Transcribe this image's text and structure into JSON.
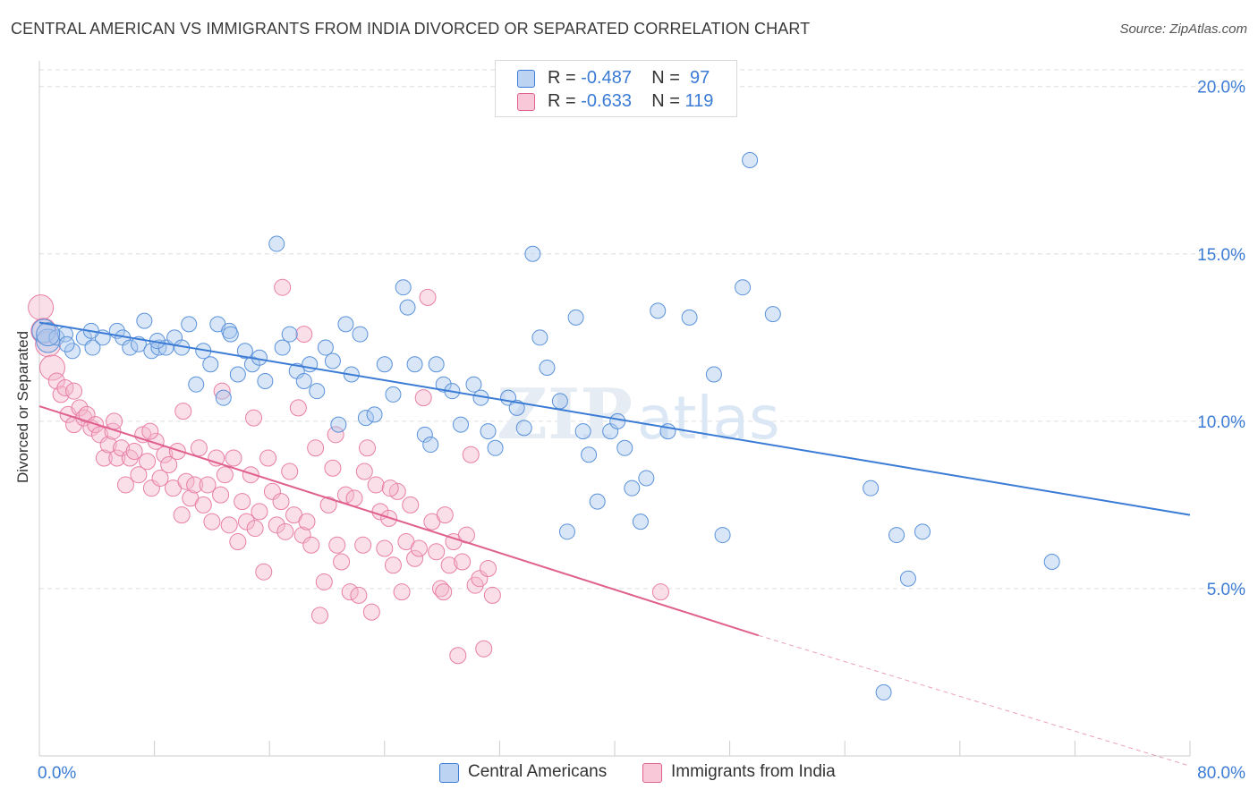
{
  "title": "CENTRAL AMERICAN VS IMMIGRANTS FROM INDIA DIVORCED OR SEPARATED CORRELATION CHART",
  "source": "Source: ZipAtlas.com",
  "watermark": {
    "zip": "ZIP",
    "atlas": "atlas"
  },
  "legend": {
    "rows": [
      {
        "r_label": "R = ",
        "r_value": "-0.487",
        "n_label": "N = ",
        "n_value": "97"
      },
      {
        "r_label": "R = ",
        "r_value": "-0.633",
        "n_label": "N = ",
        "n_value": "119"
      }
    ]
  },
  "colors": {
    "blue": "#3a7bd5",
    "blue_fill": "#a9c8ee",
    "pink": "#e0608e",
    "pink_fill": "#f5b8cc",
    "tick_text": "#3a7bd5",
    "grid": "#dddddd"
  },
  "chart_data": {
    "type": "scatter",
    "title": "CENTRAL AMERICAN VS IMMIGRANTS FROM INDIA DIVORCED OR SEPARATED CORRELATION CHART",
    "xlabel": "",
    "ylabel": "Divorced or Separated",
    "xlim": [
      0,
      80
    ],
    "ylim": [
      0,
      20.5
    ],
    "x_tick_labels": [
      "0.0%",
      "80.0%"
    ],
    "y_ticks": [
      5,
      10,
      15,
      20
    ],
    "y_tick_labels": [
      "5.0%",
      "10.0%",
      "15.0%",
      "20.0%"
    ],
    "grid": true,
    "series": [
      {
        "name": "Central Americans",
        "color": "#3a7bd5",
        "trend": {
          "x0": 0,
          "y0": 12.95,
          "x1": 80,
          "y1": 7.2
        },
        "points": [
          [
            0.3,
            12.7
          ],
          [
            0.6,
            12.4
          ],
          [
            1.2,
            12.5
          ],
          [
            1.8,
            12.6
          ],
          [
            2.3,
            12.1
          ],
          [
            3.1,
            12.5
          ],
          [
            3.7,
            12.2
          ],
          [
            4.4,
            12.5
          ],
          [
            5.4,
            12.7
          ],
          [
            5.8,
            12.5
          ],
          [
            6.3,
            12.2
          ],
          [
            6.9,
            12.3
          ],
          [
            7.3,
            13.0
          ],
          [
            7.8,
            12.1
          ],
          [
            8.3,
            12.2
          ],
          [
            8.8,
            12.2
          ],
          [
            9.4,
            12.5
          ],
          [
            9.9,
            12.2
          ],
          [
            10.4,
            12.9
          ],
          [
            10.9,
            11.1
          ],
          [
            11.4,
            12.1
          ],
          [
            11.9,
            11.7
          ],
          [
            12.4,
            12.9
          ],
          [
            12.8,
            10.7
          ],
          [
            13.2,
            12.7
          ],
          [
            13.8,
            11.4
          ],
          [
            14.3,
            12.1
          ],
          [
            14.8,
            11.7
          ],
          [
            15.3,
            11.9
          ],
          [
            15.7,
            11.2
          ],
          [
            16.5,
            15.3
          ],
          [
            16.9,
            12.2
          ],
          [
            17.4,
            12.6
          ],
          [
            17.9,
            11.5
          ],
          [
            18.4,
            11.2
          ],
          [
            18.8,
            11.7
          ],
          [
            19.3,
            10.9
          ],
          [
            19.9,
            12.2
          ],
          [
            20.4,
            11.8
          ],
          [
            20.8,
            9.9
          ],
          [
            21.3,
            12.9
          ],
          [
            21.7,
            11.4
          ],
          [
            22.3,
            12.6
          ],
          [
            22.7,
            10.1
          ],
          [
            23.3,
            10.2
          ],
          [
            24.0,
            11.7
          ],
          [
            24.6,
            10.8
          ],
          [
            25.3,
            14.0
          ],
          [
            25.6,
            13.4
          ],
          [
            26.1,
            11.7
          ],
          [
            26.8,
            9.6
          ],
          [
            27.2,
            9.3
          ],
          [
            27.6,
            11.7
          ],
          [
            28.1,
            11.1
          ],
          [
            28.7,
            10.9
          ],
          [
            29.3,
            9.9
          ],
          [
            30.2,
            11.1
          ],
          [
            30.7,
            10.7
          ],
          [
            31.2,
            9.7
          ],
          [
            31.7,
            9.2
          ],
          [
            32.6,
            10.7
          ],
          [
            33.2,
            10.4
          ],
          [
            33.7,
            9.8
          ],
          [
            34.3,
            15.0
          ],
          [
            34.8,
            12.5
          ],
          [
            35.3,
            11.6
          ],
          [
            36.2,
            10.6
          ],
          [
            36.7,
            6.7
          ],
          [
            37.3,
            13.1
          ],
          [
            37.8,
            9.7
          ],
          [
            38.2,
            9.0
          ],
          [
            38.8,
            7.6
          ],
          [
            39.7,
            9.7
          ],
          [
            40.2,
            10.0
          ],
          [
            40.7,
            9.2
          ],
          [
            41.2,
            8.0
          ],
          [
            41.8,
            7.0
          ],
          [
            42.2,
            8.3
          ],
          [
            43.0,
            13.3
          ],
          [
            43.7,
            9.7
          ],
          [
            45.2,
            13.1
          ],
          [
            46.9,
            11.4
          ],
          [
            47.5,
            6.6
          ],
          [
            48.9,
            14.0
          ],
          [
            49.4,
            17.8
          ],
          [
            51.0,
            13.2
          ],
          [
            57.8,
            8.0
          ],
          [
            58.7,
            1.9
          ],
          [
            59.6,
            6.6
          ],
          [
            60.4,
            5.3
          ],
          [
            61.4,
            6.7
          ],
          [
            70.4,
            5.8
          ],
          [
            0.6,
            12.6
          ],
          [
            1.9,
            12.3
          ],
          [
            3.6,
            12.7
          ],
          [
            8.2,
            12.4
          ],
          [
            13.3,
            12.6
          ]
        ]
      },
      {
        "name": "Immigrants from India",
        "color": "#e0608e",
        "trend": {
          "x0": 0,
          "y0": 10.45,
          "x1": 50,
          "y1": 3.6
        },
        "trend_dashed": {
          "x0": 50,
          "y0": 3.6,
          "x1": 80,
          "y1": -0.3
        },
        "points": [
          [
            0.1,
            13.4
          ],
          [
            0.3,
            12.7
          ],
          [
            0.6,
            12.3
          ],
          [
            0.9,
            11.6
          ],
          [
            1.2,
            11.2
          ],
          [
            1.5,
            10.8
          ],
          [
            1.8,
            11.0
          ],
          [
            2.0,
            10.2
          ],
          [
            2.4,
            9.9
          ],
          [
            2.8,
            10.4
          ],
          [
            3.1,
            10.1
          ],
          [
            3.3,
            10.2
          ],
          [
            3.6,
            9.8
          ],
          [
            3.9,
            9.9
          ],
          [
            4.2,
            9.6
          ],
          [
            4.5,
            8.9
          ],
          [
            4.8,
            9.3
          ],
          [
            5.1,
            9.7
          ],
          [
            5.4,
            8.9
          ],
          [
            5.7,
            9.2
          ],
          [
            6.0,
            8.1
          ],
          [
            6.3,
            8.9
          ],
          [
            6.6,
            9.1
          ],
          [
            6.9,
            8.4
          ],
          [
            7.2,
            9.6
          ],
          [
            7.5,
            8.8
          ],
          [
            7.8,
            8.0
          ],
          [
            8.1,
            9.4
          ],
          [
            8.4,
            8.3
          ],
          [
            8.7,
            9.0
          ],
          [
            9.0,
            8.7
          ],
          [
            9.3,
            8.0
          ],
          [
            9.6,
            9.1
          ],
          [
            9.9,
            7.2
          ],
          [
            10.2,
            8.2
          ],
          [
            10.5,
            7.7
          ],
          [
            10.8,
            8.1
          ],
          [
            11.1,
            9.2
          ],
          [
            11.4,
            7.5
          ],
          [
            11.7,
            8.1
          ],
          [
            12.0,
            7.0
          ],
          [
            12.3,
            8.9
          ],
          [
            12.6,
            7.8
          ],
          [
            12.9,
            8.4
          ],
          [
            13.2,
            6.9
          ],
          [
            13.5,
            8.9
          ],
          [
            13.8,
            6.4
          ],
          [
            14.1,
            7.6
          ],
          [
            14.4,
            7.0
          ],
          [
            14.7,
            8.4
          ],
          [
            15.0,
            6.8
          ],
          [
            15.3,
            7.3
          ],
          [
            15.6,
            5.5
          ],
          [
            15.9,
            8.9
          ],
          [
            16.2,
            7.9
          ],
          [
            16.5,
            6.9
          ],
          [
            16.8,
            7.6
          ],
          [
            17.1,
            6.7
          ],
          [
            17.4,
            8.5
          ],
          [
            17.7,
            7.2
          ],
          [
            18.0,
            10.4
          ],
          [
            18.3,
            6.6
          ],
          [
            18.6,
            7.0
          ],
          [
            18.9,
            6.3
          ],
          [
            19.2,
            9.2
          ],
          [
            19.5,
            4.2
          ],
          [
            19.8,
            5.2
          ],
          [
            20.1,
            7.5
          ],
          [
            20.4,
            8.6
          ],
          [
            20.7,
            6.3
          ],
          [
            21.0,
            5.8
          ],
          [
            21.3,
            7.8
          ],
          [
            21.6,
            4.9
          ],
          [
            21.9,
            7.7
          ],
          [
            22.2,
            4.8
          ],
          [
            22.5,
            6.3
          ],
          [
            22.8,
            9.2
          ],
          [
            23.1,
            4.3
          ],
          [
            23.4,
            8.1
          ],
          [
            23.7,
            7.3
          ],
          [
            24.0,
            6.2
          ],
          [
            24.3,
            7.1
          ],
          [
            24.6,
            5.7
          ],
          [
            24.9,
            7.9
          ],
          [
            25.2,
            4.9
          ],
          [
            25.5,
            6.4
          ],
          [
            25.8,
            7.5
          ],
          [
            26.1,
            5.9
          ],
          [
            26.4,
            6.2
          ],
          [
            26.7,
            10.7
          ],
          [
            27.0,
            13.7
          ],
          [
            27.3,
            7.0
          ],
          [
            27.6,
            6.1
          ],
          [
            27.9,
            5.0
          ],
          [
            28.2,
            7.2
          ],
          [
            28.5,
            5.7
          ],
          [
            28.8,
            6.4
          ],
          [
            29.1,
            3.0
          ],
          [
            29.4,
            5.8
          ],
          [
            29.7,
            6.6
          ],
          [
            30.0,
            9.0
          ],
          [
            30.3,
            5.1
          ],
          [
            30.6,
            5.3
          ],
          [
            30.9,
            3.2
          ],
          [
            31.2,
            5.6
          ],
          [
            31.5,
            4.8
          ],
          [
            2.4,
            10.9
          ],
          [
            5.2,
            10.0
          ],
          [
            7.7,
            9.7
          ],
          [
            10.0,
            10.3
          ],
          [
            12.7,
            10.9
          ],
          [
            14.9,
            10.1
          ],
          [
            16.9,
            14.0
          ],
          [
            18.4,
            12.6
          ],
          [
            20.6,
            9.6
          ],
          [
            22.6,
            8.5
          ],
          [
            24.4,
            8.0
          ],
          [
            28.1,
            4.9
          ],
          [
            43.2,
            4.9
          ]
        ]
      }
    ]
  },
  "bottom_legend": {
    "blue_label": "Central Americans",
    "pink_label": "Immigrants from India"
  }
}
